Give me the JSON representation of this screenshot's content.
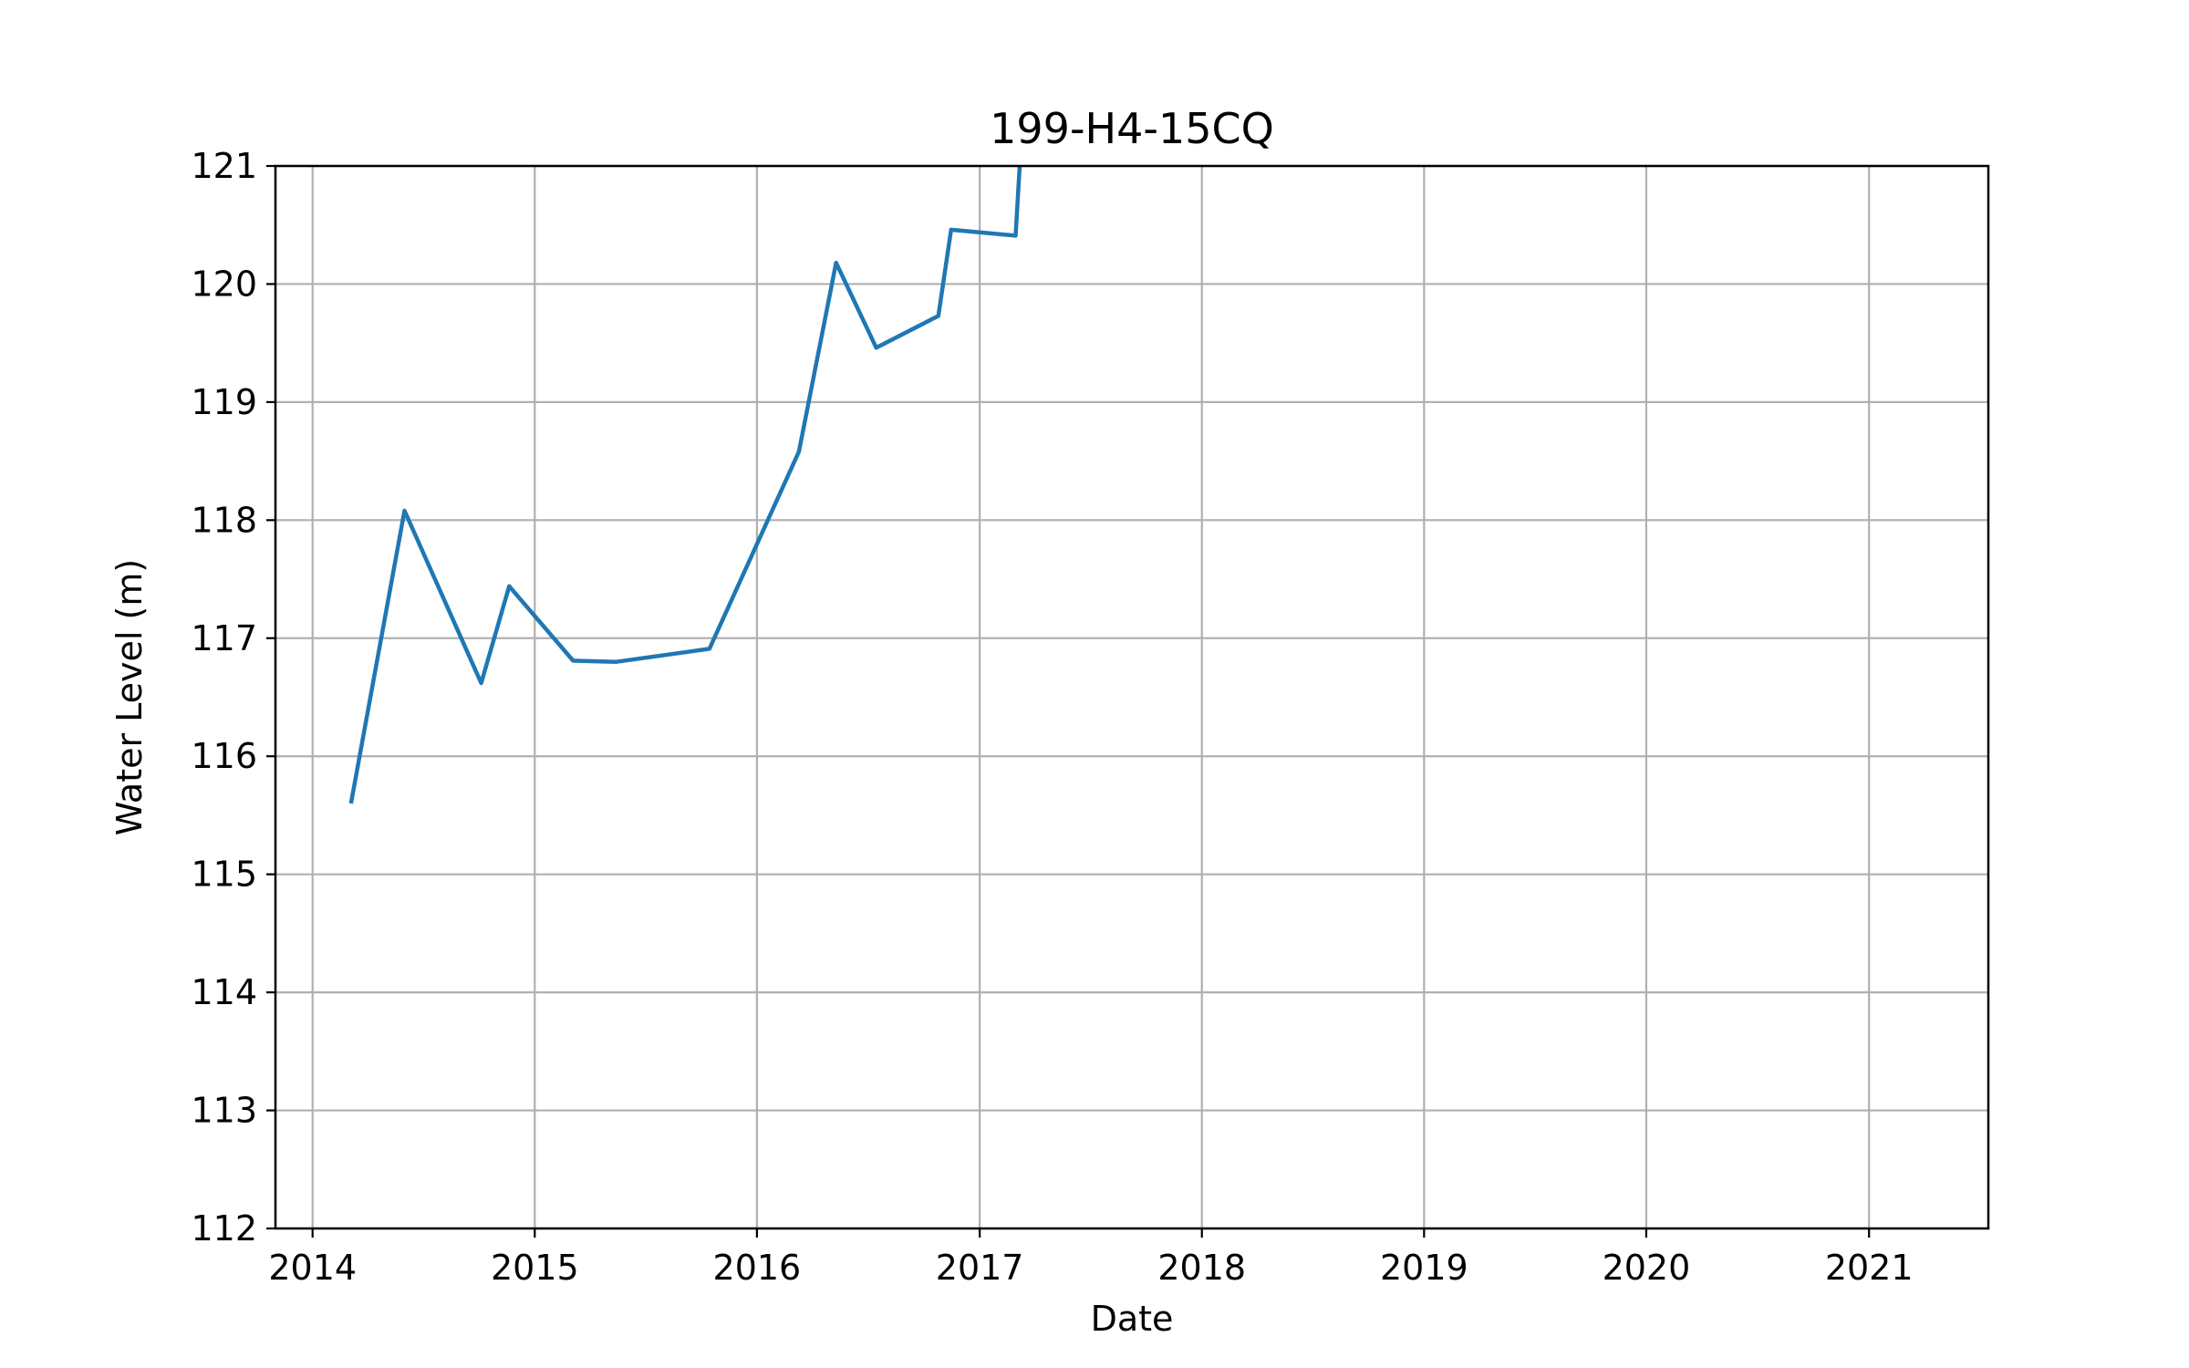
{
  "chart_data": {
    "type": "line",
    "title": "199-H4-15CQ",
    "xlabel": "Date",
    "ylabel": "Water Level (m)",
    "ylim": [
      112,
      121
    ],
    "xlim": [
      "2013-11-01",
      "2021-07-16"
    ],
    "x_ticks": [
      {
        "date": "2014-01-01",
        "label": "2014"
      },
      {
        "date": "2015-01-01",
        "label": "2015"
      },
      {
        "date": "2016-01-01",
        "label": "2016"
      },
      {
        "date": "2017-01-01",
        "label": "2017"
      },
      {
        "date": "2018-01-01",
        "label": "2018"
      },
      {
        "date": "2019-01-01",
        "label": "2019"
      },
      {
        "date": "2020-01-01",
        "label": "2020"
      },
      {
        "date": "2021-01-01",
        "label": "2021"
      }
    ],
    "y_ticks": [
      112,
      113,
      114,
      115,
      116,
      117,
      118,
      119,
      120,
      121
    ],
    "grid": true,
    "series": [
      {
        "color": "#1f77b4",
        "x": [
          "2014-03-05",
          "2014-06-01",
          "2014-10-05",
          "2014-11-20",
          "2015-03-05",
          "2015-05-15",
          "2015-10-15",
          "2016-03-10",
          "2016-05-10",
          "2016-07-15",
          "2016-10-25",
          "2016-11-15",
          "2017-03-01",
          "2017-03-10",
          "2017-03-20"
        ],
        "y": [
          115.6,
          118.08,
          116.62,
          117.44,
          116.81,
          116.8,
          116.91,
          118.58,
          120.18,
          119.46,
          119.73,
          120.46,
          120.41,
          121.2,
          121.6
        ]
      }
    ]
  }
}
